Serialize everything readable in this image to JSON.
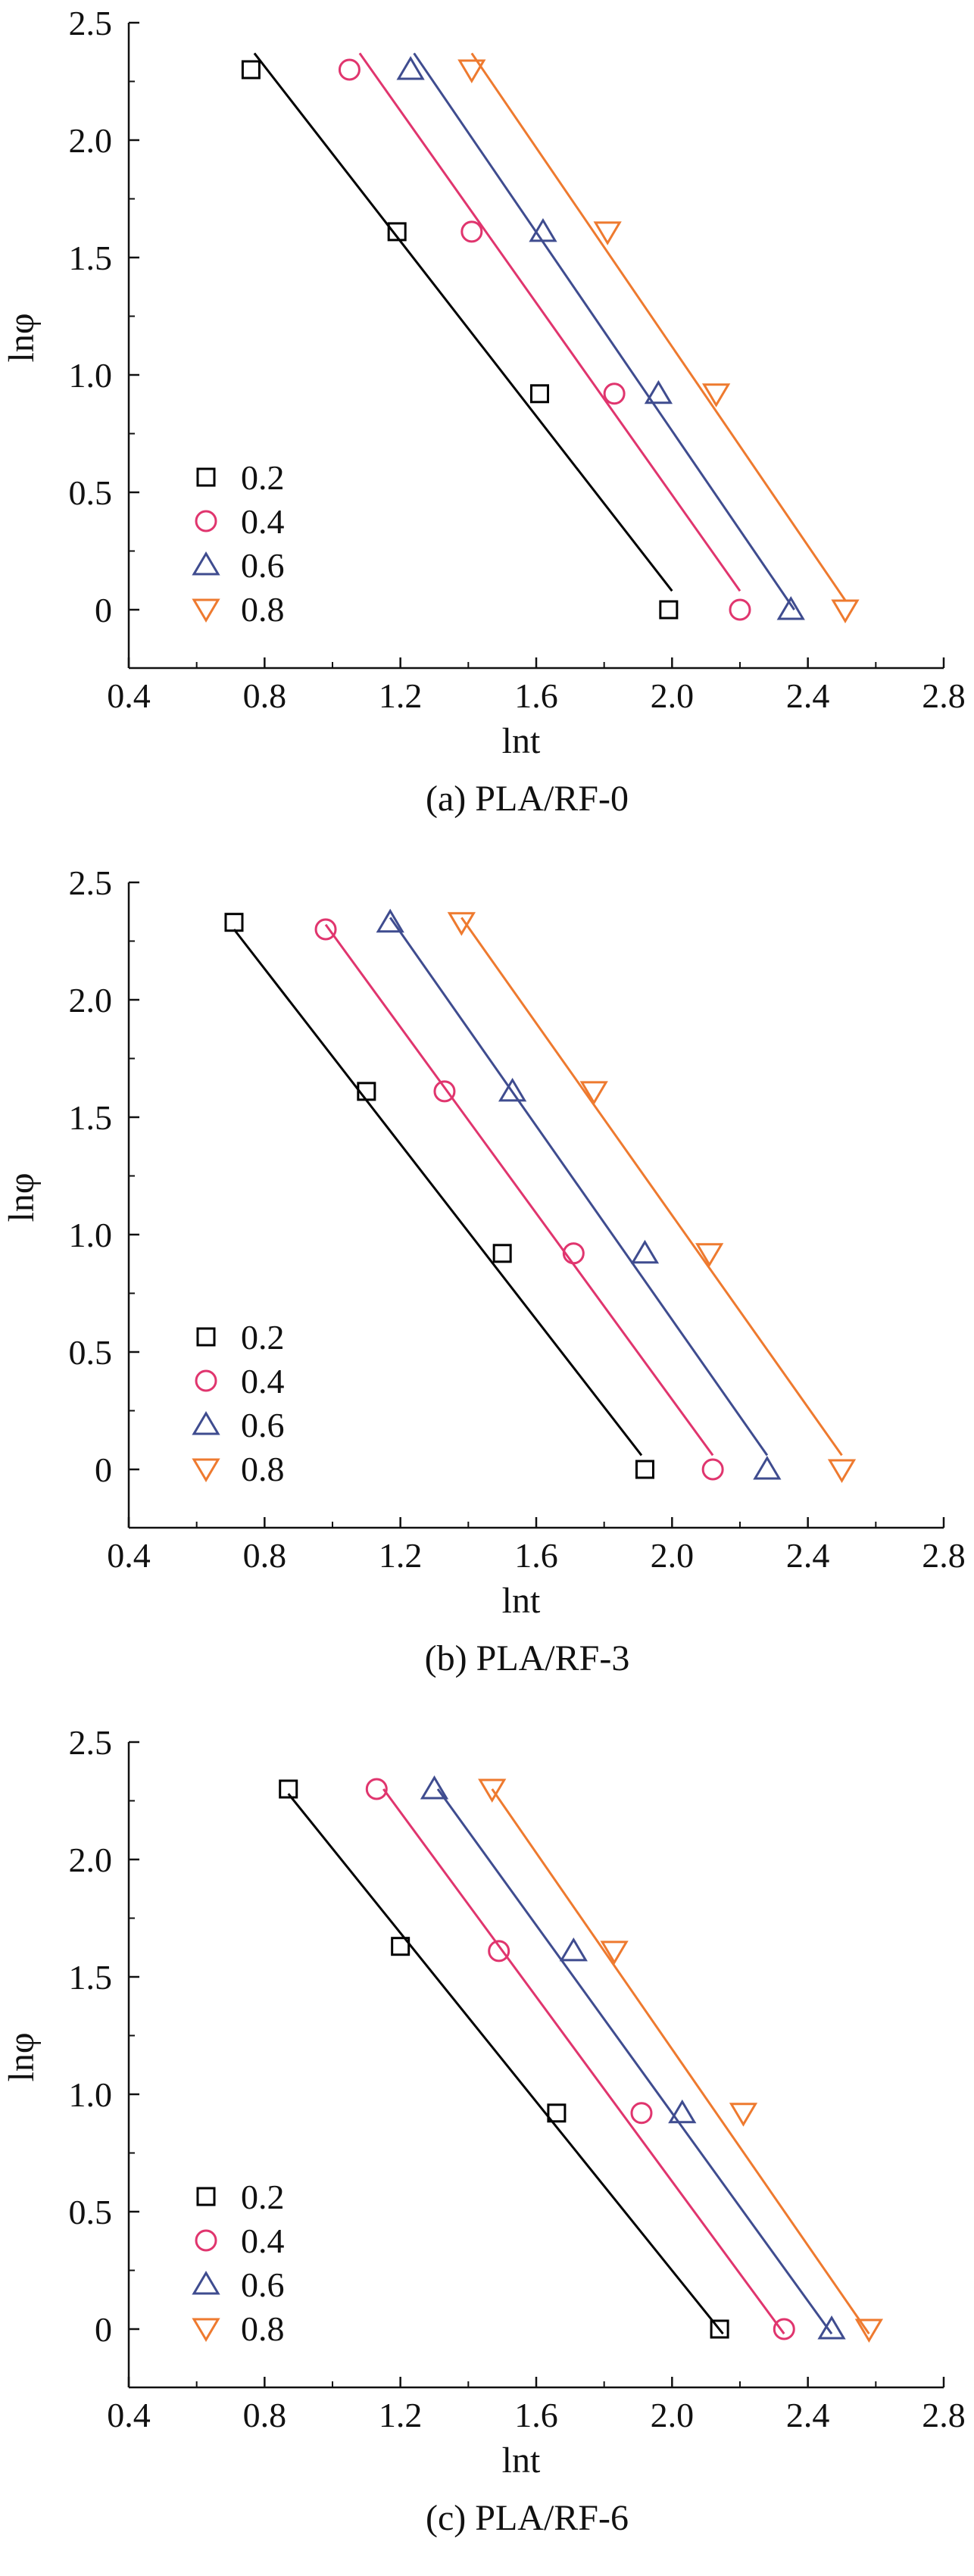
{
  "colors": {
    "0.2": "#000000",
    "0.4": "#e0356e",
    "0.6": "#3f4c8f",
    "0.8": "#ee7a2f"
  },
  "chart_data": [
    {
      "type": "scatter",
      "caption": "(a) PLA/RF-0",
      "xlabel": "lnt",
      "ylabel": "lnφ",
      "xlim": [
        0.4,
        2.8
      ],
      "ylim": [
        -0.25,
        2.5
      ],
      "xticks": [
        "0.4",
        "0.8",
        "1.2",
        "1.6",
        "2.0",
        "2.4",
        "2.8"
      ],
      "yticks": [
        "0",
        "0.5",
        "1.0",
        "1.5",
        "2.0",
        "2.5"
      ],
      "legend_position": "bottom-left",
      "series": [
        {
          "name": "0.2",
          "marker": "square",
          "x": [
            0.76,
            1.19,
            1.61,
            1.99
          ],
          "y": [
            2.3,
            1.61,
            0.92,
            0.0
          ],
          "fit": [
            [
              0.77,
              2.37
            ],
            [
              2.0,
              0.08
            ]
          ]
        },
        {
          "name": "0.4",
          "marker": "circle",
          "x": [
            1.05,
            1.41,
            1.83,
            2.2
          ],
          "y": [
            2.3,
            1.61,
            0.92,
            0.0
          ],
          "fit": [
            [
              1.08,
              2.37
            ],
            [
              2.2,
              0.08
            ]
          ]
        },
        {
          "name": "0.6",
          "marker": "triangle-up",
          "x": [
            1.23,
            1.62,
            1.96,
            2.35
          ],
          "y": [
            2.3,
            1.61,
            0.92,
            0.0
          ],
          "fit": [
            [
              1.24,
              2.37
            ],
            [
              2.36,
              0.0
            ]
          ]
        },
        {
          "name": "0.8",
          "marker": "triangle-down",
          "x": [
            1.41,
            1.81,
            2.13,
            2.51
          ],
          "y": [
            2.3,
            1.61,
            0.92,
            0.0
          ],
          "fit": [
            [
              1.41,
              2.37
            ],
            [
              2.51,
              0.04
            ]
          ]
        }
      ]
    },
    {
      "type": "scatter",
      "caption": "(b) PLA/RF-3",
      "xlabel": "lnt",
      "ylabel": "lnφ",
      "xlim": [
        0.4,
        2.8
      ],
      "ylim": [
        -0.25,
        2.5
      ],
      "xticks": [
        "0.4",
        "0.8",
        "1.2",
        "1.6",
        "2.0",
        "2.4",
        "2.8"
      ],
      "yticks": [
        "0",
        "0.5",
        "1.0",
        "1.5",
        "2.0",
        "2.5"
      ],
      "legend_position": "bottom-left",
      "series": [
        {
          "name": "0.2",
          "marker": "square",
          "x": [
            0.71,
            1.1,
            1.5,
            1.92
          ],
          "y": [
            2.33,
            1.61,
            0.92,
            0.0
          ],
          "fit": [
            [
              0.71,
              2.3
            ],
            [
              1.91,
              0.06
            ]
          ]
        },
        {
          "name": "0.4",
          "marker": "circle",
          "x": [
            0.98,
            1.33,
            1.71,
            2.12
          ],
          "y": [
            2.3,
            1.61,
            0.92,
            0.0
          ],
          "fit": [
            [
              0.98,
              2.32
            ],
            [
              2.12,
              0.06
            ]
          ]
        },
        {
          "name": "0.6",
          "marker": "triangle-up",
          "x": [
            1.17,
            1.53,
            1.92,
            2.28
          ],
          "y": [
            2.33,
            1.61,
            0.92,
            0.0
          ],
          "fit": [
            [
              1.17,
              2.35
            ],
            [
              2.28,
              0.06
            ]
          ]
        },
        {
          "name": "0.8",
          "marker": "triangle-down",
          "x": [
            1.38,
            1.77,
            2.11,
            2.5
          ],
          "y": [
            2.33,
            1.61,
            0.92,
            0.0
          ],
          "fit": [
            [
              1.38,
              2.35
            ],
            [
              2.5,
              0.06
            ]
          ]
        }
      ]
    },
    {
      "type": "scatter",
      "caption": "(c) PLA/RF-6",
      "xlabel": "lnt",
      "ylabel": "lnφ",
      "xlim": [
        0.4,
        2.8
      ],
      "ylim": [
        -0.25,
        2.5
      ],
      "xticks": [
        "0.4",
        "0.8",
        "1.2",
        "1.6",
        "2.0",
        "2.4",
        "2.8"
      ],
      "yticks": [
        "0",
        "0.5",
        "1.0",
        "1.5",
        "2.0",
        "2.5"
      ],
      "legend_position": "bottom-left",
      "series": [
        {
          "name": "0.2",
          "marker": "square",
          "x": [
            0.87,
            1.2,
            1.66,
            2.14
          ],
          "y": [
            2.3,
            1.63,
            0.92,
            0.0
          ],
          "fit": [
            [
              0.87,
              2.28
            ],
            [
              2.15,
              -0.02
            ]
          ]
        },
        {
          "name": "0.4",
          "marker": "circle",
          "x": [
            1.13,
            1.49,
            1.91,
            2.33
          ],
          "y": [
            2.3,
            1.61,
            0.92,
            0.0
          ],
          "fit": [
            [
              1.15,
              2.3
            ],
            [
              2.33,
              -0.02
            ]
          ]
        },
        {
          "name": "0.6",
          "marker": "triangle-up",
          "x": [
            1.3,
            1.71,
            2.03,
            2.47
          ],
          "y": [
            2.3,
            1.61,
            0.92,
            0.0
          ],
          "fit": [
            [
              1.31,
              2.3
            ],
            [
              2.47,
              -0.02
            ]
          ]
        },
        {
          "name": "0.8",
          "marker": "triangle-down",
          "x": [
            1.47,
            1.83,
            2.21,
            2.58
          ],
          "y": [
            2.3,
            1.61,
            0.92,
            0.0
          ],
          "fit": [
            [
              1.47,
              2.3
            ],
            [
              2.58,
              -0.02
            ]
          ]
        }
      ]
    }
  ]
}
